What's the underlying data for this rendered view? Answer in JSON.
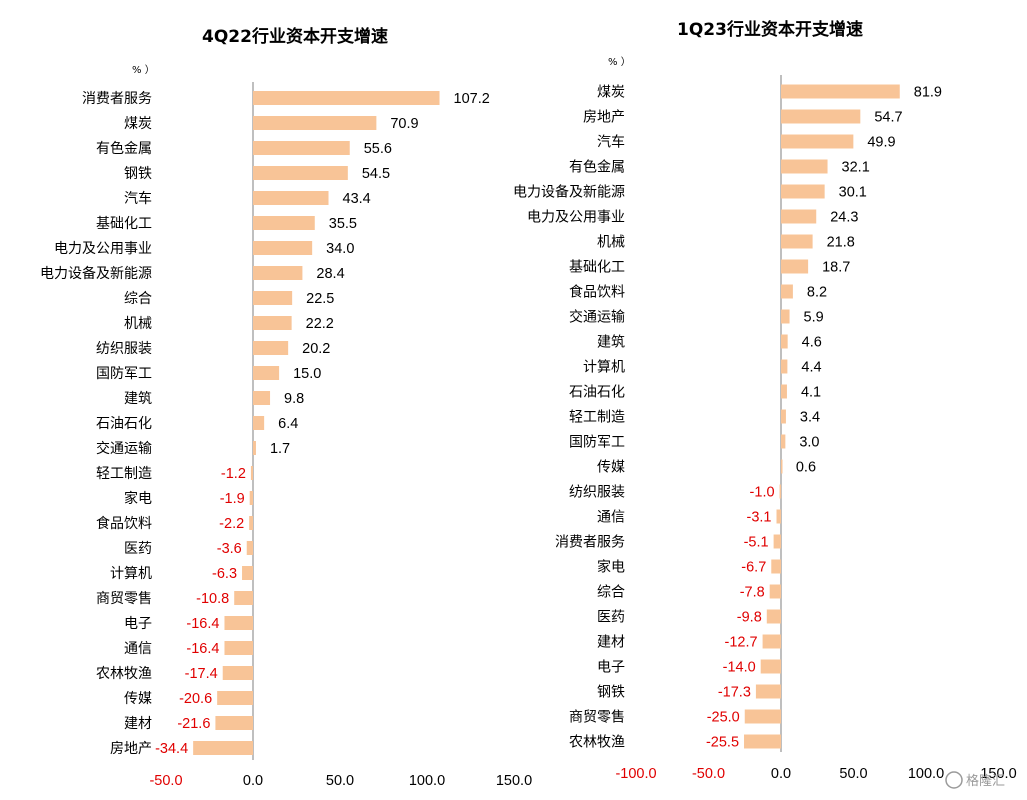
{
  "colors": {
    "bar": "#F8C497",
    "axis": "#7f7f7f",
    "positive_label": "#000000",
    "negative_label": "#E00000"
  },
  "watermark": "格隆汇",
  "chart_data": [
    {
      "type": "bar",
      "orientation": "horizontal",
      "title": "4Q22行业资本开支增速",
      "unit": "%",
      "xlim": [
        -50,
        150
      ],
      "xticks": [
        "-50.0",
        "0.0",
        "50.0",
        "100.0",
        "150.0"
      ],
      "categories": [
        "消费者服务",
        "煤炭",
        "有色金属",
        "钢铁",
        "汽车",
        "基础化工",
        "电力及公用事业",
        "电力设备及新能源",
        "综合",
        "机械",
        "纺织服装",
        "国防军工",
        "建筑",
        "石油石化",
        "交通运输",
        "轻工制造",
        "家电",
        "食品饮料",
        "医药",
        "计算机",
        "商贸零售",
        "电子",
        "通信",
        "农林牧渔",
        "传媒",
        "建材",
        "房地产"
      ],
      "values": [
        107.2,
        70.9,
        55.6,
        54.5,
        43.4,
        35.5,
        34.0,
        28.4,
        22.5,
        22.2,
        20.2,
        15.0,
        9.8,
        6.4,
        1.7,
        -1.2,
        -1.9,
        -2.2,
        -3.6,
        -6.3,
        -10.8,
        -16.4,
        -16.4,
        -17.4,
        -20.6,
        -21.6,
        -34.4
      ],
      "value_labels": [
        "107.2",
        "70.9",
        "55.6",
        "54.5",
        "43.4",
        "35.5",
        "34.0",
        "28.4",
        "22.5",
        "22.2",
        "20.2",
        "15.0",
        "9.8",
        "6.4",
        "1.7",
        "-1.2",
        "-1.9",
        "-2.2",
        "-3.6",
        "-6.3",
        "-10.8",
        "-16.4",
        "-16.4",
        "-17.4",
        "-20.6",
        "-21.6",
        "-34.4"
      ]
    },
    {
      "type": "bar",
      "orientation": "horizontal",
      "title": "1Q23行业资本开支增速",
      "unit": "%",
      "xlim": [
        -100,
        150
      ],
      "xticks": [
        "-100.0",
        "-50.0",
        "0.0",
        "50.0",
        "100.0",
        "150.0"
      ],
      "categories": [
        "煤炭",
        "房地产",
        "汽车",
        "有色金属",
        "电力设备及新能源",
        "电力及公用事业",
        "机械",
        "基础化工",
        "食品饮料",
        "交通运输",
        "建筑",
        "计算机",
        "石油石化",
        "轻工制造",
        "国防军工",
        "传媒",
        "纺织服装",
        "通信",
        "消费者服务",
        "家电",
        "综合",
        "医药",
        "建材",
        "电子",
        "钢铁",
        "商贸零售",
        "农林牧渔"
      ],
      "values": [
        81.9,
        54.7,
        49.9,
        32.1,
        30.1,
        24.3,
        21.8,
        18.7,
        8.2,
        5.9,
        4.6,
        4.4,
        4.1,
        3.4,
        3.0,
        0.6,
        -1.0,
        -3.1,
        -5.1,
        -6.7,
        -7.8,
        -9.8,
        -12.7,
        -14.0,
        -17.3,
        -25.0,
        -25.5
      ],
      "value_labels": [
        "81.9",
        "54.7",
        "49.9",
        "32.1",
        "30.1",
        "24.3",
        "21.8",
        "18.7",
        "8.2",
        "5.9",
        "4.6",
        "4.4",
        "4.1",
        "3.4",
        "3.0",
        "0.6",
        "-1.0",
        "-3.1",
        "-5.1",
        "-6.7",
        "-7.8",
        "-9.8",
        "-12.7",
        "-14.0",
        "-17.3",
        "-25.0",
        "-25.5"
      ]
    }
  ]
}
